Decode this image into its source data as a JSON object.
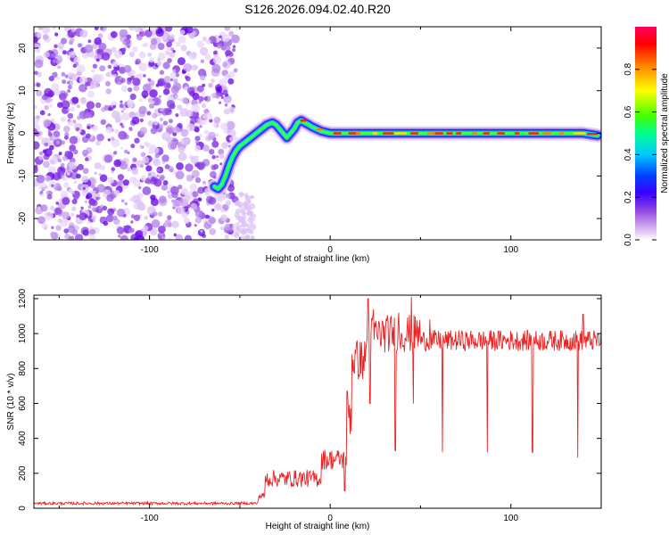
{
  "title": "S126.2026.094.02.40.R20",
  "chart_data": [
    {
      "type": "heatmap",
      "title": "S126.2026.094.02.40.R20",
      "xlabel": "Height of straight line (km)",
      "ylabel": "Frequency (Hz)",
      "xlim": [
        -164,
        150
      ],
      "ylim": [
        -25,
        25
      ],
      "xticks": [
        -100,
        0,
        100
      ],
      "yticks": [
        -20,
        -10,
        0,
        10,
        20
      ],
      "noise_region_x": [
        -164,
        -52
      ],
      "trace_ridge": {
        "x": [
          -64,
          -62,
          -60,
          -58,
          -56,
          -54,
          -52,
          -50,
          -47,
          -44,
          -41,
          -38,
          -35,
          -32,
          -30,
          -28,
          -26,
          -24,
          -22,
          -20,
          -18,
          -16,
          -14,
          -12,
          -10,
          -5,
          0,
          10,
          20,
          30,
          40,
          50,
          60,
          70,
          80,
          90,
          100,
          110,
          120,
          130,
          140,
          148
        ],
        "y": [
          -12.5,
          -13,
          -12,
          -10,
          -7.5,
          -5.5,
          -4,
          -3,
          -2,
          -1,
          0,
          1,
          2,
          2.5,
          2,
          1,
          0,
          -1,
          0,
          1,
          2.5,
          3,
          2.5,
          2,
          1.5,
          0.5,
          0,
          0,
          0,
          0,
          0,
          0,
          0,
          0,
          0,
          0,
          0,
          0,
          0,
          0,
          0,
          -0.5
        ]
      },
      "colorbar": {
        "label": "Normalized spectral amplitude",
        "range": [
          0,
          1
        ],
        "ticks": [
          0.0,
          0.2,
          0.4,
          0.6,
          0.8
        ],
        "tick_labels": [
          "0.0",
          "0.2",
          "0.4",
          "0.6",
          "0.8"
        ],
        "colormap": [
          "#ffffff",
          "#d8b8f0",
          "#8e44e0",
          "#3a00ff",
          "#0040ff",
          "#00c8ff",
          "#00ff90",
          "#40ff00",
          "#ffff00",
          "#ff8000",
          "#ff0000",
          "#ff0060"
        ]
      }
    },
    {
      "type": "line",
      "xlabel": "Height of straight line (km)",
      "ylabel": "SNR (10 * v/v)",
      "xlim": [
        -164,
        150
      ],
      "ylim": [
        0,
        1220
      ],
      "xticks": [
        -100,
        0,
        100
      ],
      "yticks": [
        0,
        200,
        400,
        600,
        800,
        1000,
        1200
      ],
      "color": "#ee2222",
      "baseline_segments": [
        {
          "x_from": -164,
          "x_to": -40,
          "level": 28,
          "noise": 8
        },
        {
          "x_from": -40,
          "x_to": -36,
          "level": 70,
          "noise": 20
        },
        {
          "x_from": -36,
          "x_to": -5,
          "level": 170,
          "noise": 50
        },
        {
          "x_from": -5,
          "x_to": 9,
          "level": 280,
          "noise": 60
        },
        {
          "x_from": 9,
          "x_to": 12,
          "level": 550,
          "noise": 150
        },
        {
          "x_from": 12,
          "x_to": 20,
          "level": 850,
          "noise": 120
        },
        {
          "x_from": 20,
          "x_to": 50,
          "level": 1000,
          "noise": 110
        },
        {
          "x_from": 50,
          "x_to": 150,
          "level": 960,
          "noise": 60
        }
      ],
      "dips": [
        {
          "x": 8,
          "y": 100
        },
        {
          "x": 22,
          "y": 600
        },
        {
          "x": 36,
          "y": 330
        },
        {
          "x": 46,
          "y": 600
        },
        {
          "x": 62,
          "y": 320
        },
        {
          "x": 87,
          "y": 320
        },
        {
          "x": 112,
          "y": 320
        },
        {
          "x": 137,
          "y": 290
        }
      ],
      "spikes": [
        {
          "x": 21,
          "y": 1200
        },
        {
          "x": 24,
          "y": 1140
        },
        {
          "x": 38,
          "y": 1120
        },
        {
          "x": 45,
          "y": 1210
        },
        {
          "x": 55,
          "y": 1080
        },
        {
          "x": 140,
          "y": 1110
        }
      ]
    }
  ]
}
